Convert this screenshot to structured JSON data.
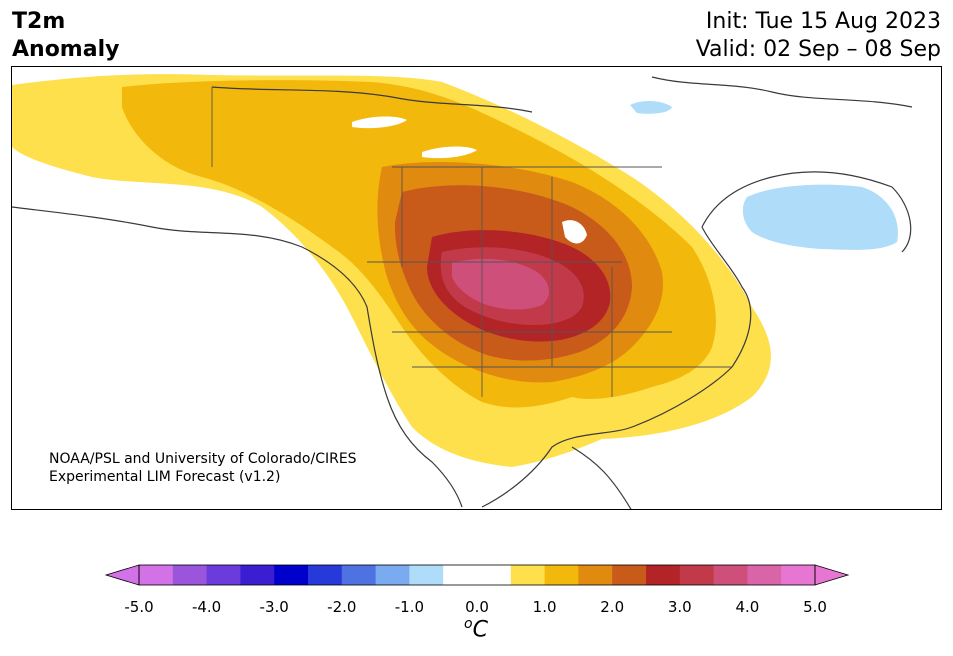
{
  "header": {
    "title_line1": "T2m",
    "title_line2": "Anomaly",
    "init": "Init: Tue 15 Aug 2023",
    "valid": "Valid: 02 Sep – 08 Sep"
  },
  "credit": {
    "line1": "NOAA/PSL and University of Colorado/CIRES",
    "line2": "Experimental LIM Forecast (v1.2)"
  },
  "colorbar": {
    "ticks": [
      "-5.0",
      "-4.0",
      "-3.0",
      "-2.0",
      "-1.0",
      "0.0",
      "1.0",
      "2.0",
      "3.0",
      "4.0",
      "5.0"
    ],
    "unit_base": "C",
    "unit_sup": "o",
    "colors": [
      "#d371e6",
      "#9b54dc",
      "#6b3bdb",
      "#3b1ed2",
      "#0000cc",
      "#2839d9",
      "#4f72e3",
      "#7aaaf0",
      "#aedcf9",
      "#ffffff",
      "#ffffff",
      "#fde04c",
      "#f3b80c",
      "#e08a10",
      "#c85a1a",
      "#b22426",
      "#c23a4a",
      "#cd4f7a",
      "#d964a8",
      "#e676d2"
    ],
    "min_color": "#d371e6",
    "max_color": "#e676d2"
  }
}
